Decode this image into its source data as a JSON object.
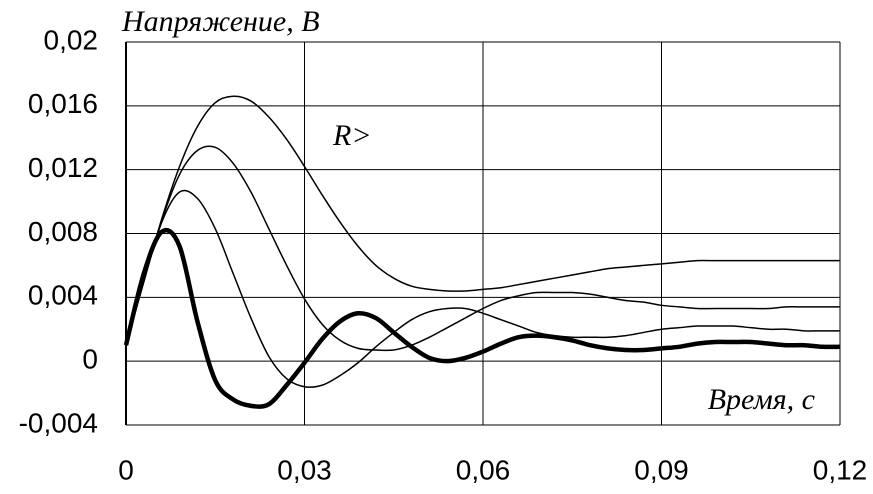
{
  "chart_data": {
    "type": "line",
    "ylabel": "Напряжение, В",
    "xlabel": "Время, с",
    "annotation": "R>",
    "x": [
      0,
      0.003,
      0.006,
      0.009,
      0.012,
      0.015,
      0.018,
      0.021,
      0.024,
      0.027,
      0.03,
      0.033,
      0.036,
      0.039,
      0.042,
      0.045,
      0.048,
      0.051,
      0.054,
      0.057,
      0.06,
      0.063,
      0.066,
      0.069,
      0.072,
      0.075,
      0.078,
      0.081,
      0.084,
      0.087,
      0.09,
      0.093,
      0.096,
      0.099,
      0.102,
      0.105,
      0.108,
      0.111,
      0.114,
      0.117,
      0.12
    ],
    "series": [
      {
        "color": "#000000",
        "width": 4.5,
        "values": [
          0.001,
          0.0055,
          0.0081,
          0.0072,
          0.0025,
          -0.0012,
          -0.0024,
          -0.0028,
          -0.0027,
          -0.0015,
          -0.0001,
          0.0014,
          0.0025,
          0.003,
          0.0027,
          0.0018,
          0.0009,
          0.0002,
          0.0,
          0.0002,
          0.0006,
          0.0011,
          0.0015,
          0.0016,
          0.0015,
          0.0013,
          0.001,
          0.0008,
          0.0007,
          0.0007,
          0.0008,
          0.0009,
          0.0011,
          0.0012,
          0.0012,
          0.0012,
          0.0011,
          0.001,
          0.001,
          0.0009,
          0.0009
        ]
      },
      {
        "color": "#000000",
        "width": 1.5,
        "values": [
          0.001,
          0.005,
          0.0087,
          0.0106,
          0.0102,
          0.0083,
          0.0055,
          0.0027,
          0.0003,
          -0.0011,
          -0.0016,
          -0.0015,
          -0.0009,
          -0.0001,
          0.0009,
          0.0018,
          0.0026,
          0.0031,
          0.0033,
          0.0033,
          0.003,
          0.0026,
          0.0022,
          0.0018,
          0.0016,
          0.0015,
          0.0015,
          0.0015,
          0.0016,
          0.0018,
          0.002,
          0.0021,
          0.0022,
          0.0022,
          0.0022,
          0.0021,
          0.002,
          0.002,
          0.0019,
          0.0019,
          0.0019
        ]
      },
      {
        "color": "#000000",
        "width": 1.5,
        "values": [
          0.001,
          0.005,
          0.0088,
          0.0117,
          0.0132,
          0.0134,
          0.0124,
          0.0106,
          0.0083,
          0.006,
          0.0039,
          0.0023,
          0.0013,
          0.0008,
          0.0007,
          0.0007,
          0.001,
          0.0015,
          0.0021,
          0.0027,
          0.0033,
          0.0038,
          0.0041,
          0.0043,
          0.0043,
          0.0043,
          0.0042,
          0.004,
          0.0038,
          0.0037,
          0.0035,
          0.0034,
          0.0033,
          0.0033,
          0.0033,
          0.0033,
          0.0033,
          0.0034,
          0.0034,
          0.0034,
          0.0034
        ]
      },
      {
        "color": "#000000",
        "width": 1.5,
        "values": [
          0.001,
          0.005,
          0.0089,
          0.0122,
          0.0147,
          0.0162,
          0.0166,
          0.0163,
          0.0153,
          0.0139,
          0.0122,
          0.0104,
          0.0087,
          0.0072,
          0.006,
          0.0052,
          0.0047,
          0.0045,
          0.0044,
          0.0044,
          0.0045,
          0.0046,
          0.0048,
          0.005,
          0.0052,
          0.0054,
          0.0056,
          0.0058,
          0.0059,
          0.006,
          0.0061,
          0.0062,
          0.0063,
          0.0063,
          0.0063,
          0.0063,
          0.0063,
          0.0063,
          0.0063,
          0.0063,
          0.0063
        ]
      }
    ],
    "xlim": [
      0,
      0.12
    ],
    "xticks": [
      0,
      {
        "value": 0.03,
        "label": "0,03"
      },
      {
        "value": 0.06,
        "label": "0,06"
      },
      {
        "value": 0.09,
        "label": "0,09"
      },
      {
        "value": 0.12,
        "label": "0,12"
      }
    ],
    "ylim": [
      -0.004,
      0.02
    ],
    "yticks": [
      {
        "value": -0.004,
        "label": "-0,004"
      },
      0,
      {
        "value": 0.004,
        "label": "0,004"
      },
      {
        "value": 0.008,
        "label": "0,008"
      },
      {
        "value": 0.012,
        "label": "0,012"
      },
      {
        "value": 0.016,
        "label": "0,016"
      },
      {
        "value": 0.02,
        "label": "0,02"
      }
    ],
    "grid": true
  }
}
